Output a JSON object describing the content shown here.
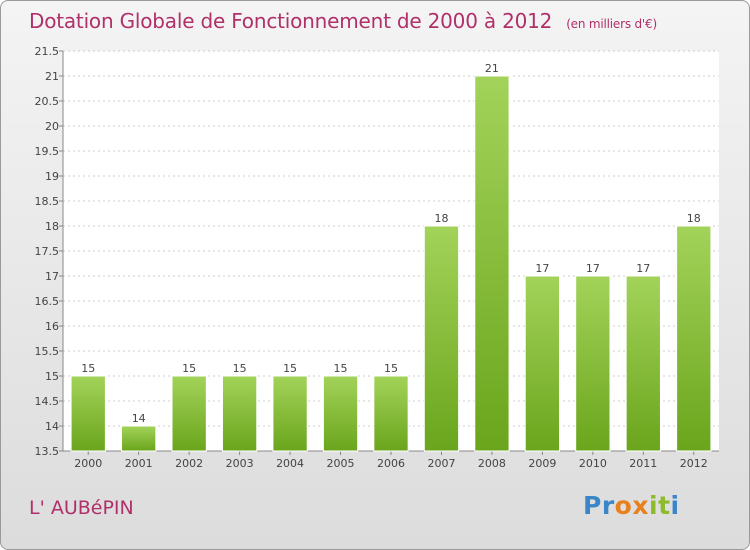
{
  "header": {
    "title": "Dotation Globale de Fonctionnement de 2000 à 2012",
    "subtitle": "(en milliers d'€)"
  },
  "footer": {
    "commune": "L' AUBéPIN",
    "logo_letters": [
      {
        "ch": "P",
        "color": "#3b86c8"
      },
      {
        "ch": "r",
        "color": "#3b86c8"
      },
      {
        "ch": "o",
        "color": "#e8801e"
      },
      {
        "ch": "x",
        "color": "#e8801e"
      },
      {
        "ch": "i",
        "color": "#8dbb2b"
      },
      {
        "ch": "t",
        "color": "#8dbb2b"
      },
      {
        "ch": "i",
        "color": "#3b86c8"
      }
    ]
  },
  "chart_data": {
    "type": "bar",
    "title": "Dotation Globale de Fonctionnement de 2000 à 2012",
    "subtitle": "(en milliers d'€)",
    "categories": [
      "2000",
      "2001",
      "2002",
      "2003",
      "2004",
      "2005",
      "2006",
      "2007",
      "2008",
      "2009",
      "2010",
      "2011",
      "2012"
    ],
    "values": [
      15,
      14,
      15,
      15,
      15,
      15,
      15,
      18,
      21,
      17,
      17,
      17,
      18
    ],
    "ylim": [
      13.5,
      21.5
    ],
    "yticks": [
      13.5,
      14,
      14.5,
      15,
      15.5,
      16,
      16.5,
      17,
      17.5,
      18,
      18.5,
      19,
      19.5,
      20,
      20.5,
      21,
      21.5
    ],
    "grid": true,
    "bar_color_top": "#a3d35a",
    "bar_color_bottom": "#6aa51c"
  }
}
